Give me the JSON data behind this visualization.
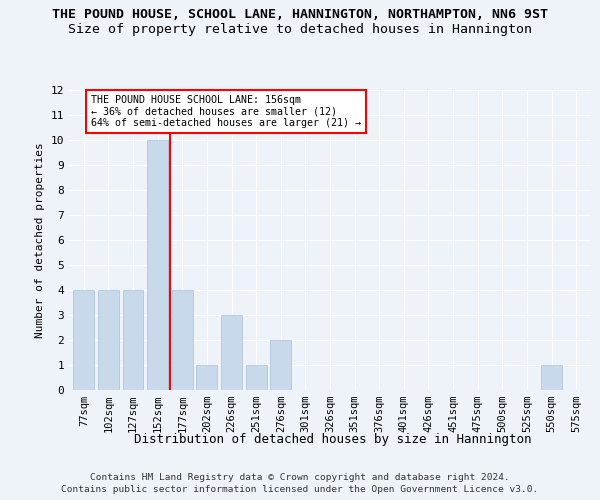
{
  "title": "THE POUND HOUSE, SCHOOL LANE, HANNINGTON, NORTHAMPTON, NN6 9ST",
  "subtitle": "Size of property relative to detached houses in Hannington",
  "xlabel": "Distribution of detached houses by size in Hannington",
  "ylabel": "Number of detached properties",
  "categories": [
    "77sqm",
    "102sqm",
    "127sqm",
    "152sqm",
    "177sqm",
    "202sqm",
    "226sqm",
    "251sqm",
    "276sqm",
    "301sqm",
    "326sqm",
    "351sqm",
    "376sqm",
    "401sqm",
    "426sqm",
    "451sqm",
    "475sqm",
    "500sqm",
    "525sqm",
    "550sqm",
    "575sqm"
  ],
  "values": [
    4,
    4,
    4,
    10,
    4,
    1,
    3,
    1,
    2,
    0,
    0,
    0,
    0,
    0,
    0,
    0,
    0,
    0,
    0,
    1,
    0
  ],
  "bar_color": "#c9d9ec",
  "bar_edgecolor": "#a8bfd8",
  "ylim": [
    0,
    12
  ],
  "yticks": [
    0,
    1,
    2,
    3,
    4,
    5,
    6,
    7,
    8,
    9,
    10,
    11,
    12
  ],
  "red_line_x": 3.5,
  "annotation_line1": "THE POUND HOUSE SCHOOL LANE: 156sqm",
  "annotation_line2": "← 36% of detached houses are smaller (12)",
  "annotation_line3": "64% of semi-detached houses are larger (21) →",
  "footer1": "Contains HM Land Registry data © Crown copyright and database right 2024.",
  "footer2": "Contains public sector information licensed under the Open Government Licence v3.0.",
  "background_color": "#eef2f9",
  "grid_color": "#ffffff",
  "title_fontsize": 9.5,
  "subtitle_fontsize": 9.5,
  "ylabel_fontsize": 8,
  "xlabel_fontsize": 9,
  "tick_fontsize": 7.5,
  "bar_width": 0.85
}
